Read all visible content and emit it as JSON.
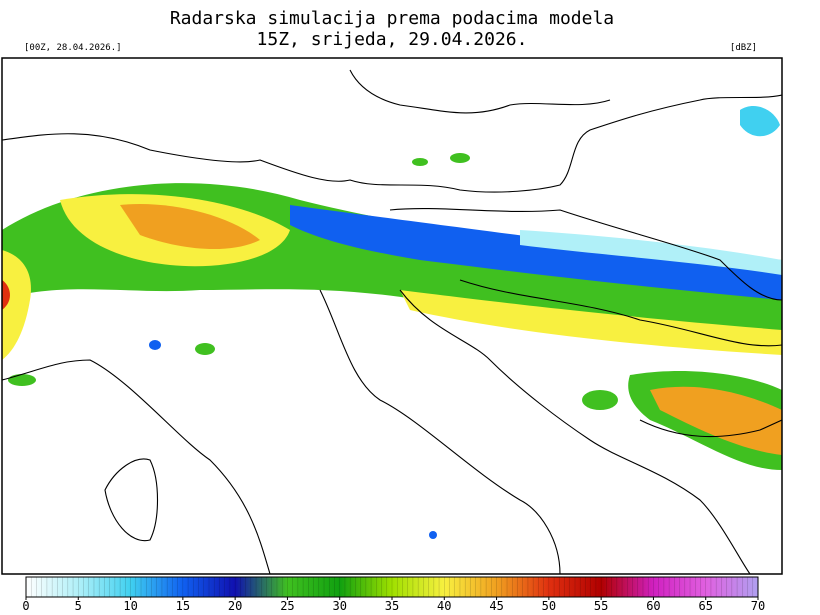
{
  "header": {
    "title_line1": "Radarska simulacija prema podacima modela",
    "title_line2": "15Z, srijeda, 29.04.2026.",
    "run_label": "[00Z, 28.04.2026.]",
    "unit_label": "[dBZ]"
  },
  "colorbar": {
    "min": 0,
    "max": 70,
    "ticks": [
      0,
      5,
      10,
      15,
      20,
      25,
      30,
      35,
      40,
      45,
      50,
      55,
      60,
      65,
      70
    ],
    "colors": [
      "#ffffff",
      "#b0f0f8",
      "#40d0f0",
      "#1060f0",
      "#1010b0",
      "#40c020",
      "#10a010",
      "#a0e000",
      "#f8f040",
      "#f0a020",
      "#e03010",
      "#b00000",
      "#d020c0",
      "#e060e0",
      "#b0a0f0"
    ]
  }
}
